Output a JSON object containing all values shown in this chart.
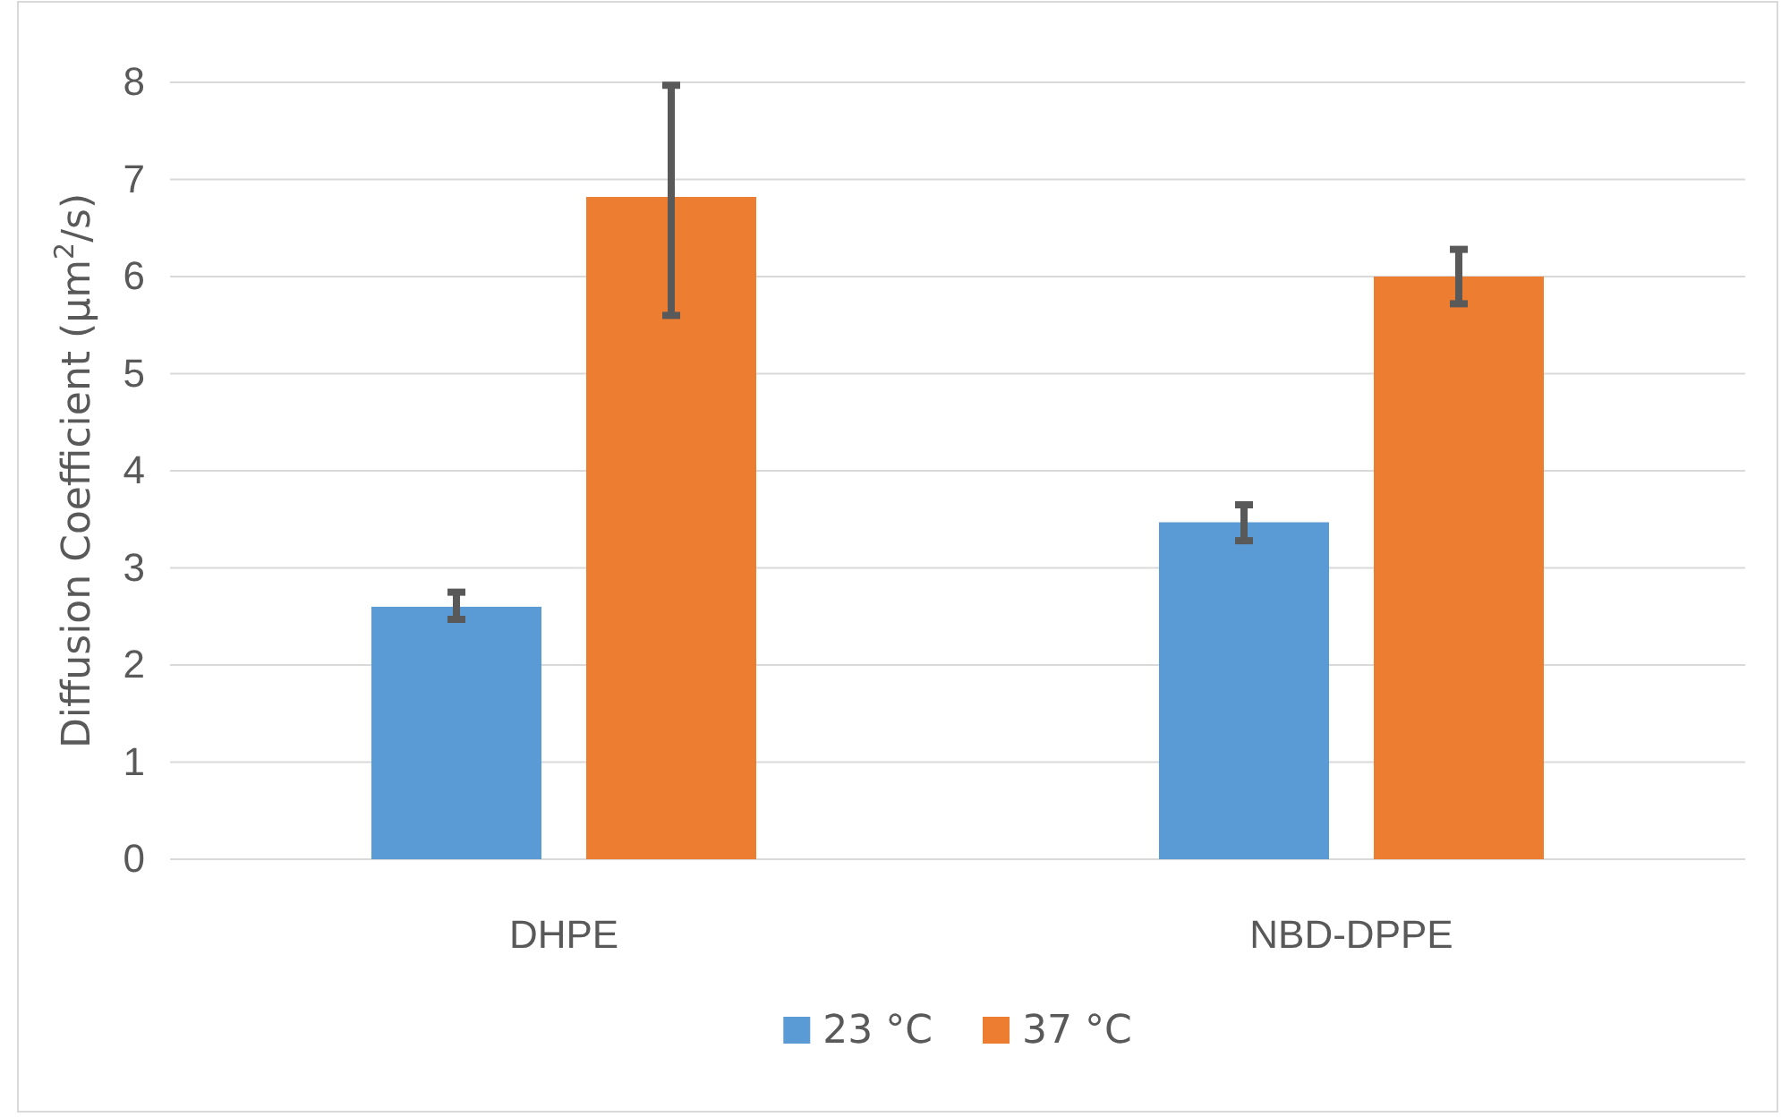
{
  "chart_data": {
    "type": "bar",
    "ylabel": "Diffusion Coefficient (μm$^{2}$/s)",
    "categories": [
      "DHPE",
      "NBD-DPPE"
    ],
    "series": [
      {
        "name": "23 °C",
        "color": "#5b9bd5",
        "values": [
          2.6,
          3.47
        ],
        "errors": [
          [
            2.47,
            2.75
          ],
          [
            3.28,
            3.65
          ]
        ]
      },
      {
        "name": "37 °C",
        "color": "#ed7d31",
        "values": [
          6.82,
          6.0
        ],
        "errors": [
          [
            5.6,
            7.97
          ],
          [
            5.72,
            6.28
          ]
        ]
      }
    ],
    "ylim": [
      0,
      8
    ],
    "yticks": [
      0,
      1,
      2,
      3,
      4,
      5,
      6,
      7,
      8
    ],
    "grid": "y",
    "legend": "bottom"
  }
}
